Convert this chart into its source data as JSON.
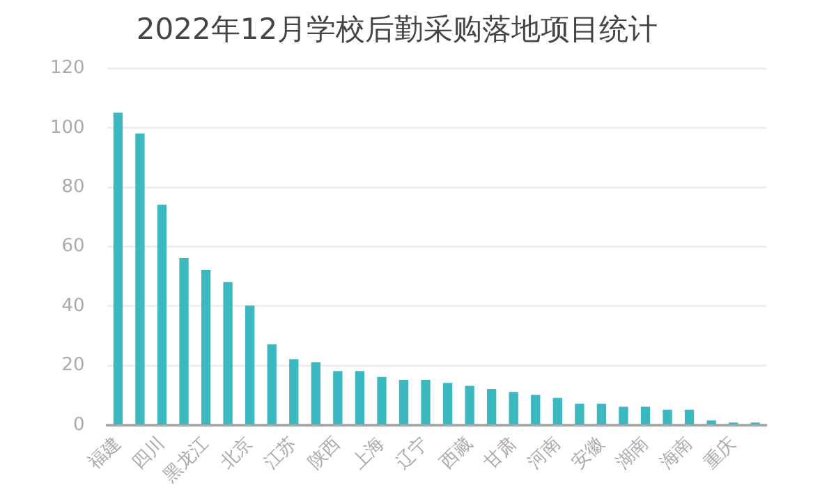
{
  "chart_data": {
    "type": "bar",
    "title": "2022年12月学校后勤采购落地项目统计",
    "categories": [
      "福建",
      null,
      "四川",
      null,
      "黑龙江",
      null,
      "北京",
      null,
      "江苏",
      null,
      "陕西",
      null,
      "上海",
      null,
      "辽宁",
      null,
      "西藏",
      null,
      "甘肃",
      null,
      "河南",
      null,
      "安徽",
      null,
      "湖南",
      null,
      "海南",
      null,
      "重庆",
      null
    ],
    "values": [
      105,
      98,
      74,
      56,
      52,
      48,
      40,
      27,
      22,
      21,
      18,
      18,
      16,
      15,
      15,
      14,
      13,
      12,
      11,
      10,
      9,
      7,
      7,
      6,
      6,
      5,
      5,
      1.4,
      0.7,
      0.7
    ],
    "color": "#3cb9c0",
    "ylim": [
      0,
      120
    ],
    "yticks": [
      0,
      20,
      40,
      60,
      80,
      100,
      120
    ],
    "grid": "y",
    "legend": false
  }
}
